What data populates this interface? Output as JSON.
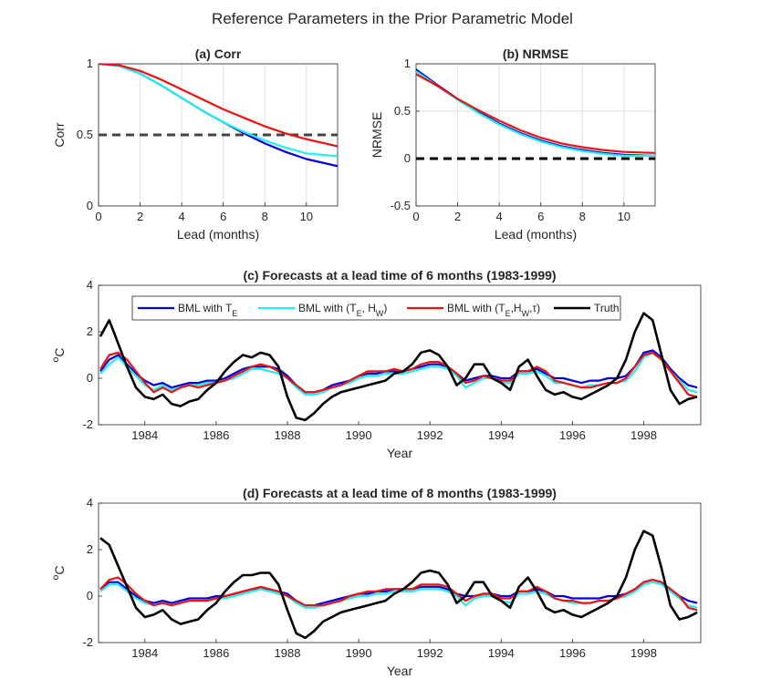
{
  "suptitle": "Reference Parameters in the Prior Parametric Model",
  "colors": {
    "te": "#0000dd",
    "te_hw": "#22eeee",
    "te_hw_tau": "#ee1111",
    "truth": "#000000",
    "ref": "#444444",
    "grid": "#e0e0e0",
    "axis": "#262626"
  },
  "chart_data": [
    {
      "id": "a",
      "type": "line",
      "title": "(a) Corr",
      "xlabel": "Lead (months)",
      "ylabel": "Corr",
      "xlim": [
        0,
        11.5
      ],
      "ylim": [
        0,
        1
      ],
      "xticks": [
        0,
        2,
        4,
        6,
        8,
        10
      ],
      "yticks": [
        0,
        0.5,
        1
      ],
      "ytick_labels": [
        "0",
        "0.5",
        "1"
      ],
      "grid": true,
      "reference_line": {
        "y": 0.5,
        "style": "dashed"
      },
      "x": [
        0,
        1,
        2,
        3,
        4,
        5,
        6,
        7,
        8,
        9,
        10,
        11.5
      ],
      "series": [
        {
          "name": "BML with T_E",
          "color_key": "te",
          "values": [
            1.0,
            0.985,
            0.93,
            0.85,
            0.76,
            0.67,
            0.59,
            0.51,
            0.44,
            0.38,
            0.33,
            0.28
          ]
        },
        {
          "name": "BML with (T_E, H_W)",
          "color_key": "te_hw",
          "values": [
            1.0,
            0.985,
            0.93,
            0.85,
            0.76,
            0.67,
            0.59,
            0.52,
            0.46,
            0.41,
            0.37,
            0.35
          ]
        },
        {
          "name": "BML with (T_E, H_W, tau)",
          "color_key": "te_hw_tau",
          "values": [
            1.0,
            0.99,
            0.95,
            0.89,
            0.82,
            0.75,
            0.68,
            0.62,
            0.56,
            0.51,
            0.47,
            0.42
          ]
        }
      ]
    },
    {
      "id": "b",
      "type": "line",
      "title": "(b) NRMSE",
      "xlabel": "Lead (months)",
      "ylabel": "NRMSE",
      "xlim": [
        0,
        11.5
      ],
      "ylim": [
        -0.5,
        1
      ],
      "xticks": [
        0,
        2,
        4,
        6,
        8,
        10
      ],
      "yticks": [
        -0.5,
        0,
        0.5,
        1
      ],
      "ytick_labels": [
        "-0.5",
        "0",
        "0.5",
        "1"
      ],
      "grid": true,
      "reference_line": {
        "y": 0,
        "style": "dashed"
      },
      "x": [
        0,
        1,
        2,
        3,
        4,
        5,
        6,
        7,
        8,
        9,
        10,
        11.5
      ],
      "series": [
        {
          "name": "BML with T_E",
          "color_key": "te",
          "values": [
            0.94,
            0.78,
            0.63,
            0.49,
            0.37,
            0.27,
            0.19,
            0.13,
            0.09,
            0.06,
            0.04,
            0.03
          ]
        },
        {
          "name": "BML with (T_E, H_W)",
          "color_key": "te_hw",
          "values": [
            0.92,
            0.77,
            0.62,
            0.48,
            0.36,
            0.26,
            0.18,
            0.12,
            0.08,
            0.05,
            0.03,
            0.03
          ]
        },
        {
          "name": "BML with (T_E, H_W, tau)",
          "color_key": "te_hw_tau",
          "values": [
            0.89,
            0.77,
            0.63,
            0.51,
            0.4,
            0.3,
            0.22,
            0.16,
            0.12,
            0.09,
            0.07,
            0.06
          ]
        }
      ]
    },
    {
      "id": "c",
      "type": "line",
      "title": "(c) Forecasts at a lead time of 6 months (1983-1999)",
      "xlabel": "Year",
      "ylabel": "oC",
      "xlim": [
        1982.7,
        1999.6
      ],
      "ylim": [
        -2,
        4
      ],
      "xticks": [
        1984,
        1986,
        1988,
        1990,
        1992,
        1994,
        1996,
        1998
      ],
      "yticks": [
        -2,
        0,
        2,
        4
      ],
      "ytick_labels": [
        "-2",
        "0",
        "2",
        "4"
      ],
      "grid": false,
      "legend": {
        "position": "top",
        "entries": [
          "BML with T_E",
          "BML with (T_E, H_W)",
          "BML with (T_E,H_W,τ)",
          "Truth"
        ]
      },
      "x": [
        1982.75,
        1983.0,
        1983.25,
        1983.5,
        1983.75,
        1984.0,
        1984.25,
        1984.5,
        1984.75,
        1985.0,
        1985.25,
        1985.5,
        1985.75,
        1986.0,
        1986.25,
        1986.5,
        1986.75,
        1987.0,
        1987.25,
        1987.5,
        1987.75,
        1988.0,
        1988.25,
        1988.5,
        1988.75,
        1989.0,
        1989.25,
        1989.5,
        1989.75,
        1990.0,
        1990.25,
        1990.5,
        1990.75,
        1991.0,
        1991.25,
        1991.5,
        1991.75,
        1992.0,
        1992.25,
        1992.5,
        1992.75,
        1993.0,
        1993.25,
        1993.5,
        1993.75,
        1994.0,
        1994.25,
        1994.5,
        1994.75,
        1995.0,
        1995.25,
        1995.5,
        1995.75,
        1996.0,
        1996.25,
        1996.5,
        1996.75,
        1997.0,
        1997.25,
        1997.5,
        1997.75,
        1998.0,
        1998.25,
        1998.5,
        1998.75,
        1999.0,
        1999.25,
        1999.5
      ],
      "series": [
        {
          "name": "BML with T_E",
          "color_key": "te",
          "values": [
            0.3,
            0.8,
            1.0,
            0.6,
            0.2,
            -0.1,
            -0.3,
            -0.2,
            -0.4,
            -0.3,
            -0.2,
            -0.2,
            -0.1,
            -0.1,
            0.0,
            0.2,
            0.4,
            0.5,
            0.5,
            0.5,
            0.4,
            0.1,
            -0.3,
            -0.6,
            -0.6,
            -0.5,
            -0.3,
            -0.2,
            -0.1,
            0.1,
            0.2,
            0.2,
            0.3,
            0.3,
            0.3,
            0.4,
            0.5,
            0.6,
            0.6,
            0.5,
            0.2,
            -0.1,
            0.0,
            0.1,
            0.1,
            0.0,
            0.0,
            0.3,
            0.3,
            0.4,
            0.2,
            0.0,
            0.0,
            -0.1,
            -0.2,
            -0.1,
            -0.1,
            0.0,
            0.0,
            0.1,
            0.5,
            1.1,
            1.2,
            0.9,
            0.4,
            0.0,
            -0.3,
            -0.4
          ]
        },
        {
          "name": "BML with (T_E, H_W)",
          "color_key": "te_hw",
          "values": [
            0.2,
            0.6,
            0.9,
            0.5,
            0.1,
            -0.3,
            -0.5,
            -0.3,
            -0.5,
            -0.4,
            -0.3,
            -0.3,
            -0.2,
            -0.2,
            -0.1,
            0.0,
            0.2,
            0.4,
            0.4,
            0.3,
            0.2,
            0.0,
            -0.4,
            -0.7,
            -0.7,
            -0.6,
            -0.4,
            -0.3,
            -0.2,
            0.0,
            0.1,
            0.1,
            0.2,
            0.2,
            0.2,
            0.3,
            0.4,
            0.5,
            0.5,
            0.4,
            0.1,
            -0.4,
            -0.2,
            0.0,
            0.0,
            -0.2,
            -0.2,
            0.2,
            0.2,
            0.3,
            0.1,
            -0.2,
            -0.2,
            -0.3,
            -0.4,
            -0.3,
            -0.3,
            -0.2,
            -0.2,
            -0.1,
            0.3,
            0.9,
            1.1,
            0.8,
            0.3,
            -0.1,
            -0.5,
            -0.6
          ]
        },
        {
          "name": "BML with (T_E,H_W,τ)",
          "color_key": "te_hw_tau",
          "values": [
            0.4,
            1.0,
            1.1,
            0.8,
            0.3,
            -0.2,
            -0.6,
            -0.4,
            -0.6,
            -0.4,
            -0.3,
            -0.4,
            -0.3,
            -0.2,
            -0.1,
            0.1,
            0.3,
            0.5,
            0.6,
            0.5,
            0.3,
            0.0,
            -0.3,
            -0.6,
            -0.6,
            -0.5,
            -0.4,
            -0.3,
            -0.1,
            0.1,
            0.3,
            0.3,
            0.3,
            0.4,
            0.3,
            0.4,
            0.6,
            0.7,
            0.7,
            0.5,
            0.2,
            -0.2,
            -0.1,
            0.1,
            0.0,
            -0.1,
            -0.1,
            0.3,
            0.3,
            0.5,
            0.3,
            -0.1,
            -0.2,
            -0.3,
            -0.4,
            -0.4,
            -0.3,
            -0.2,
            -0.2,
            0.0,
            0.5,
            1.0,
            1.1,
            0.8,
            0.3,
            -0.2,
            -0.7,
            -0.8
          ]
        },
        {
          "name": "Truth",
          "color_key": "truth",
          "values": [
            1.8,
            2.5,
            1.5,
            0.5,
            -0.4,
            -0.8,
            -0.9,
            -0.7,
            -1.1,
            -1.2,
            -1.0,
            -0.9,
            -0.5,
            -0.2,
            0.3,
            0.7,
            1.0,
            0.9,
            1.1,
            1.0,
            0.5,
            -0.8,
            -1.7,
            -1.8,
            -1.5,
            -1.1,
            -0.8,
            -0.6,
            -0.5,
            -0.4,
            -0.3,
            -0.2,
            -0.1,
            0.2,
            0.3,
            0.6,
            1.1,
            1.2,
            1.0,
            0.5,
            -0.3,
            0.0,
            0.6,
            0.6,
            0.0,
            -0.2,
            -0.5,
            0.5,
            0.8,
            0.1,
            -0.5,
            -0.7,
            -0.6,
            -0.8,
            -0.9,
            -0.7,
            -0.5,
            -0.3,
            0.0,
            0.8,
            2.0,
            2.8,
            2.5,
            1.0,
            -0.5,
            -1.1,
            -0.9,
            -0.8
          ]
        }
      ]
    },
    {
      "id": "d",
      "type": "line",
      "title": "(d) Forecasts at a lead time of 8 months (1983-1999)",
      "xlabel": "Year",
      "ylabel": "oC",
      "xlim": [
        1982.7,
        1999.6
      ],
      "ylim": [
        -2,
        4
      ],
      "xticks": [
        1984,
        1986,
        1988,
        1990,
        1992,
        1994,
        1996,
        1998
      ],
      "yticks": [
        -2,
        0,
        2,
        4
      ],
      "ytick_labels": [
        "-2",
        "0",
        "2",
        "4"
      ],
      "grid": false,
      "x": [
        1982.75,
        1983.0,
        1983.25,
        1983.5,
        1983.75,
        1984.0,
        1984.25,
        1984.5,
        1984.75,
        1985.0,
        1985.25,
        1985.5,
        1985.75,
        1986.0,
        1986.25,
        1986.5,
        1986.75,
        1987.0,
        1987.25,
        1987.5,
        1987.75,
        1988.0,
        1988.25,
        1988.5,
        1988.75,
        1989.0,
        1989.25,
        1989.5,
        1989.75,
        1990.0,
        1990.25,
        1990.5,
        1990.75,
        1991.0,
        1991.25,
        1991.5,
        1991.75,
        1992.0,
        1992.25,
        1992.5,
        1992.75,
        1993.0,
        1993.25,
        1993.5,
        1993.75,
        1994.0,
        1994.25,
        1994.5,
        1994.75,
        1995.0,
        1995.25,
        1995.5,
        1995.75,
        1996.0,
        1996.25,
        1996.5,
        1996.75,
        1997.0,
        1997.25,
        1997.5,
        1997.75,
        1998.0,
        1998.25,
        1998.5,
        1998.75,
        1999.0,
        1999.25,
        1999.5
      ],
      "series": [
        {
          "name": "BML with T_E",
          "color_key": "te",
          "values": [
            0.3,
            0.6,
            0.6,
            0.3,
            0.0,
            -0.2,
            -0.3,
            -0.2,
            -0.3,
            -0.2,
            -0.1,
            -0.1,
            -0.1,
            0.0,
            0.0,
            0.1,
            0.2,
            0.3,
            0.3,
            0.3,
            0.2,
            0.1,
            -0.2,
            -0.4,
            -0.4,
            -0.3,
            -0.2,
            -0.1,
            0.0,
            0.1,
            0.1,
            0.2,
            0.2,
            0.3,
            0.3,
            0.3,
            0.4,
            0.4,
            0.4,
            0.3,
            0.1,
            0.0,
            0.0,
            0.1,
            0.1,
            0.0,
            0.0,
            0.2,
            0.2,
            0.3,
            0.2,
            0.0,
            0.0,
            -0.1,
            -0.1,
            -0.1,
            -0.1,
            0.0,
            0.0,
            0.1,
            0.3,
            0.6,
            0.7,
            0.6,
            0.3,
            0.0,
            -0.2,
            -0.3
          ]
        },
        {
          "name": "BML with (T_E, H_W)",
          "color_key": "te_hw",
          "values": [
            0.2,
            0.5,
            0.5,
            0.2,
            -0.1,
            -0.3,
            -0.4,
            -0.3,
            -0.4,
            -0.3,
            -0.2,
            -0.2,
            -0.2,
            -0.1,
            -0.1,
            0.0,
            0.1,
            0.2,
            0.3,
            0.2,
            0.1,
            0.0,
            -0.3,
            -0.5,
            -0.5,
            -0.4,
            -0.3,
            -0.2,
            -0.1,
            0.0,
            0.0,
            0.1,
            0.1,
            0.2,
            0.2,
            0.2,
            0.3,
            0.3,
            0.3,
            0.2,
            0.0,
            -0.4,
            -0.1,
            0.0,
            0.0,
            -0.2,
            -0.3,
            0.1,
            0.1,
            0.2,
            0.1,
            -0.1,
            -0.2,
            -0.3,
            -0.3,
            -0.3,
            -0.2,
            -0.2,
            -0.1,
            0.0,
            0.2,
            0.5,
            0.6,
            0.5,
            0.2,
            -0.1,
            -0.4,
            -0.5
          ]
        },
        {
          "name": "BML with (T_E,H_W,τ)",
          "color_key": "te_hw_tau",
          "values": [
            0.3,
            0.7,
            0.8,
            0.5,
            0.1,
            -0.2,
            -0.4,
            -0.3,
            -0.4,
            -0.3,
            -0.2,
            -0.2,
            -0.2,
            -0.1,
            0.0,
            0.1,
            0.2,
            0.3,
            0.4,
            0.3,
            0.2,
            0.0,
            -0.2,
            -0.4,
            -0.4,
            -0.4,
            -0.3,
            -0.2,
            0.0,
            0.1,
            0.2,
            0.2,
            0.3,
            0.3,
            0.3,
            0.3,
            0.5,
            0.5,
            0.5,
            0.4,
            0.1,
            -0.2,
            0.0,
            0.1,
            0.1,
            -0.1,
            -0.1,
            0.2,
            0.2,
            0.4,
            0.2,
            -0.1,
            -0.2,
            -0.2,
            -0.3,
            -0.3,
            -0.2,
            -0.2,
            -0.1,
            0.1,
            0.3,
            0.6,
            0.7,
            0.6,
            0.3,
            0.0,
            -0.5,
            -0.6
          ]
        },
        {
          "name": "Truth",
          "color_key": "truth",
          "values": [
            2.5,
            2.2,
            1.3,
            0.4,
            -0.5,
            -0.9,
            -0.8,
            -0.6,
            -1.0,
            -1.2,
            -1.1,
            -1.0,
            -0.6,
            -0.3,
            0.2,
            0.6,
            0.9,
            0.9,
            1.0,
            1.0,
            0.5,
            -0.6,
            -1.6,
            -1.8,
            -1.5,
            -1.1,
            -0.9,
            -0.7,
            -0.6,
            -0.5,
            -0.4,
            -0.3,
            -0.2,
            0.1,
            0.3,
            0.6,
            1.0,
            1.1,
            1.0,
            0.5,
            -0.3,
            0.0,
            0.6,
            0.6,
            0.0,
            -0.2,
            -0.5,
            0.4,
            0.8,
            0.2,
            -0.5,
            -0.7,
            -0.6,
            -0.8,
            -0.9,
            -0.7,
            -0.5,
            -0.3,
            0.0,
            0.8,
            2.0,
            2.8,
            2.6,
            1.2,
            -0.4,
            -1.0,
            -0.9,
            -0.7
          ]
        }
      ]
    }
  ]
}
